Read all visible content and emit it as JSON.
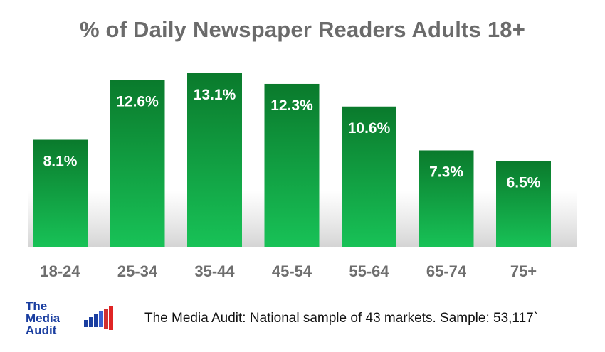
{
  "chart_data": {
    "type": "bar",
    "title": "% of Daily Newspaper Readers Adults 18+",
    "categories": [
      "18-24",
      "25-34",
      "35-44",
      "45-54",
      "55-64",
      "65-74",
      "75+"
    ],
    "values": [
      8.1,
      12.6,
      13.1,
      12.3,
      10.6,
      7.3,
      6.5
    ],
    "data_labels": [
      "8.1%",
      "12.6%",
      "13.1%",
      "12.3%",
      "10.6%",
      "7.3%",
      "6.5%"
    ],
    "xlabel": "",
    "ylabel": "",
    "ylim": [
      0,
      13.1
    ],
    "grid": false,
    "legend": "none",
    "bar_color_top": "#0a7a2c",
    "bar_color_bottom": "#18c257"
  },
  "logo": {
    "line1": "The",
    "line2": "Media",
    "line3": "Audit",
    "color": "#1a3ea0",
    "accent_color": "#e02424"
  },
  "footnote": "The Media Audit: National sample of 43 markets. Sample: 53,117`"
}
